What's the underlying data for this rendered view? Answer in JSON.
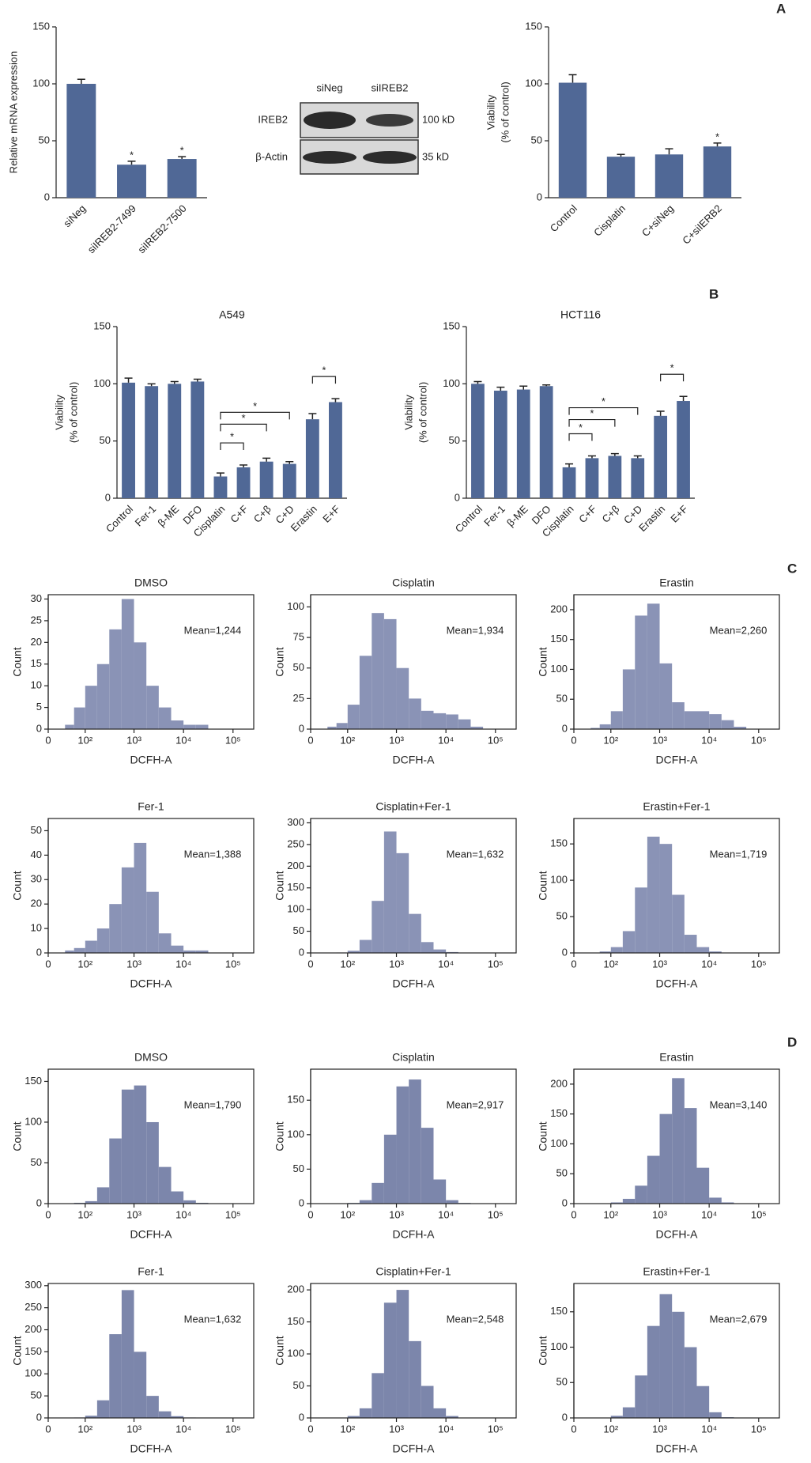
{
  "panels": [
    "A",
    "B",
    "C",
    "D"
  ],
  "blot": {
    "lanes": [
      "siNeg",
      "siIREB2"
    ],
    "rows": [
      "IREB2",
      "β-Actin"
    ],
    "sizes": [
      "100 kD",
      "35 kD"
    ]
  },
  "chart_data": [
    {
      "type": "bar",
      "ylabel": "Relative mRNA expression",
      "categories": [
        "siNeg",
        "siIREB2-7499",
        "siIREB2-7500"
      ],
      "values": [
        100,
        29,
        34
      ],
      "errors": [
        4,
        3,
        2
      ],
      "significance": [
        null,
        "*",
        "*"
      ],
      "color": "#506896",
      "ylim": [
        0,
        150
      ],
      "yticks": [
        0,
        50,
        100,
        150
      ]
    },
    {
      "type": "bar",
      "ylabel": [
        "Viability",
        "(% of control)"
      ],
      "categories": [
        "Control",
        "Cisplatin",
        "C+siNeg",
        "C+siIERB2"
      ],
      "values": [
        101,
        36,
        38,
        45
      ],
      "errors": [
        7,
        2,
        5,
        3
      ],
      "significance": [
        null,
        null,
        null,
        "*"
      ],
      "color": "#506896",
      "ylim": [
        0,
        150
      ],
      "yticks": [
        0,
        50,
        100,
        150
      ]
    },
    {
      "type": "bar",
      "title": "A549",
      "ylabel": [
        "Viability",
        "(% of control)"
      ],
      "categories": [
        "Control",
        "Fer-1",
        "β-ME",
        "DFO",
        "Cisplatin",
        "C+F",
        "C+β",
        "C+D",
        "Erastin",
        "E+F"
      ],
      "values": [
        101,
        98,
        100,
        102,
        19,
        27,
        32,
        30,
        69,
        84
      ],
      "errors": [
        4,
        2,
        2,
        2,
        3,
        2,
        3,
        2,
        5,
        3
      ],
      "brackets": [
        {
          "from": "Cisplatin",
          "to": "C+F",
          "label": "*"
        },
        {
          "from": "Cisplatin",
          "to": "C+β",
          "label": "*"
        },
        {
          "from": "Cisplatin",
          "to": "C+D",
          "label": "*"
        },
        {
          "from": "Erastin",
          "to": "E+F",
          "label": "*"
        }
      ],
      "color": "#506896",
      "ylim": [
        0,
        150
      ],
      "yticks": [
        0,
        50,
        100,
        150
      ]
    },
    {
      "type": "bar",
      "title": "HCT116",
      "ylabel": [
        "Viability",
        "(% of control)"
      ],
      "categories": [
        "Control",
        "Fer-1",
        "β-ME",
        "DFO",
        "Cisplatin",
        "C+F",
        "C+β",
        "C+D",
        "Erastin",
        "E+F"
      ],
      "values": [
        100,
        94,
        95,
        98,
        27,
        35,
        37,
        35,
        72,
        85
      ],
      "errors": [
        2,
        3,
        3,
        1,
        3,
        2,
        2,
        2,
        4,
        4
      ],
      "brackets": [
        {
          "from": "Cisplatin",
          "to": "C+F",
          "label": "*"
        },
        {
          "from": "Cisplatin",
          "to": "C+β",
          "label": "*"
        },
        {
          "from": "Cisplatin",
          "to": "C+D",
          "label": "*"
        },
        {
          "from": "Erastin",
          "to": "E+F",
          "label": "*"
        }
      ],
      "color": "#506896",
      "ylim": [
        0,
        150
      ],
      "yticks": [
        0,
        50,
        100,
        150
      ]
    },
    {
      "type": "histogram",
      "title": "DMSO",
      "annotation": "Mean=1,244",
      "xlabel": "DCFH-A",
      "ylabel": "Count",
      "color": "#8a93b6",
      "xscale": "biexponential",
      "xlim": [
        0,
        262144
      ],
      "xticks": [
        0,
        {
          "value": 100,
          "label": "10²"
        },
        {
          "value": 1000,
          "label": "10³"
        },
        {
          "value": 10000,
          "label": "10⁴"
        },
        {
          "value": 100000,
          "label": "10⁵"
        }
      ],
      "bins": [
        32,
        56,
        100,
        178,
        316,
        562,
        1000,
        1778,
        3162,
        5623,
        10000,
        17783,
        31623,
        56234,
        100000
      ],
      "counts": [
        1,
        5,
        10,
        15,
        23,
        30,
        20,
        10,
        5,
        2,
        1,
        1,
        0,
        0
      ],
      "ylim": [
        0,
        31
      ],
      "yticks": [
        0,
        5,
        10,
        15,
        20,
        25,
        30
      ]
    },
    {
      "type": "histogram",
      "title": "Cisplatin",
      "annotation": "Mean=1,934",
      "xlabel": "DCFH-A",
      "ylabel": "Count",
      "color": "#8a93b6",
      "xscale": "biexponential",
      "xlim": [
        0,
        262144
      ],
      "xticks": [
        0,
        {
          "value": 100,
          "label": "10²"
        },
        {
          "value": 1000,
          "label": "10³"
        },
        {
          "value": 10000,
          "label": "10⁴"
        },
        {
          "value": 100000,
          "label": "10⁵"
        }
      ],
      "bins": [
        32,
        56,
        100,
        178,
        316,
        562,
        1000,
        1778,
        3162,
        5623,
        10000,
        17783,
        31623,
        56234,
        100000
      ],
      "counts": [
        2,
        5,
        20,
        60,
        95,
        90,
        50,
        25,
        15,
        13,
        12,
        8,
        2,
        0
      ],
      "ylim": [
        0,
        110
      ],
      "yticks": [
        0,
        25,
        50,
        75,
        100
      ]
    },
    {
      "type": "histogram",
      "title": "Erastin",
      "annotation": "Mean=2,260",
      "xlabel": "DCFH-A",
      "ylabel": "Count",
      "color": "#8a93b6",
      "xscale": "biexponential",
      "xlim": [
        0,
        262144
      ],
      "xticks": [
        0,
        {
          "value": 100,
          "label": "10²"
        },
        {
          "value": 1000,
          "label": "10³"
        },
        {
          "value": 10000,
          "label": "10⁴"
        },
        {
          "value": 100000,
          "label": "10⁵"
        }
      ],
      "bins": [
        32,
        56,
        100,
        178,
        316,
        562,
        1000,
        1778,
        3162,
        5623,
        10000,
        17783,
        31623,
        56234,
        100000
      ],
      "counts": [
        2,
        8,
        30,
        100,
        190,
        210,
        110,
        45,
        30,
        30,
        25,
        15,
        4,
        0
      ],
      "ylim": [
        0,
        225
      ],
      "yticks": [
        0,
        50,
        100,
        150,
        200
      ]
    },
    {
      "type": "histogram",
      "title": "Fer-1",
      "annotation": "Mean=1,388",
      "xlabel": "DCFH-A",
      "ylabel": "Count",
      "color": "#8a93b6",
      "xscale": "biexponential",
      "xlim": [
        0,
        262144
      ],
      "xticks": [
        0,
        {
          "value": 100,
          "label": "10²"
        },
        {
          "value": 1000,
          "label": "10³"
        },
        {
          "value": 10000,
          "label": "10⁴"
        },
        {
          "value": 100000,
          "label": "10⁵"
        }
      ],
      "bins": [
        32,
        56,
        100,
        178,
        316,
        562,
        1000,
        1778,
        3162,
        5623,
        10000,
        17783,
        31623,
        56234,
        100000
      ],
      "counts": [
        1,
        2,
        5,
        10,
        20,
        35,
        45,
        25,
        8,
        3,
        1,
        1,
        0,
        0
      ],
      "ylim": [
        0,
        55
      ],
      "yticks": [
        0,
        10,
        20,
        30,
        40,
        50
      ]
    },
    {
      "type": "histogram",
      "title": "Cisplatin+Fer-1",
      "annotation": "Mean=1,632",
      "xlabel": "DCFH-A",
      "ylabel": "Count",
      "color": "#8a93b6",
      "xscale": "biexponential",
      "xlim": [
        0,
        262144
      ],
      "xticks": [
        0,
        {
          "value": 100,
          "label": "10²"
        },
        {
          "value": 1000,
          "label": "10³"
        },
        {
          "value": 10000,
          "label": "10⁴"
        },
        {
          "value": 100000,
          "label": "10⁵"
        }
      ],
      "bins": [
        32,
        56,
        100,
        178,
        316,
        562,
        1000,
        1778,
        3162,
        5623,
        10000,
        17783,
        31623,
        56234,
        100000
      ],
      "counts": [
        0,
        1,
        5,
        30,
        120,
        280,
        230,
        90,
        25,
        8,
        2,
        0,
        0,
        0
      ],
      "ylim": [
        0,
        310
      ],
      "yticks": [
        0,
        50,
        100,
        150,
        200,
        250,
        300
      ]
    },
    {
      "type": "histogram",
      "title": "Erastin+Fer-1",
      "annotation": "Mean=1,719",
      "xlabel": "DCFH-A",
      "ylabel": "Count",
      "color": "#8a93b6",
      "xscale": "biexponential",
      "xlim": [
        0,
        262144
      ],
      "xticks": [
        0,
        {
          "value": 100,
          "label": "10²"
        },
        {
          "value": 1000,
          "label": "10³"
        },
        {
          "value": 10000,
          "label": "10⁴"
        },
        {
          "value": 100000,
          "label": "10⁵"
        }
      ],
      "bins": [
        32,
        56,
        100,
        178,
        316,
        562,
        1000,
        1778,
        3162,
        5623,
        10000,
        17783,
        31623,
        56234,
        100000
      ],
      "counts": [
        0,
        2,
        8,
        30,
        90,
        160,
        150,
        80,
        25,
        8,
        2,
        0,
        0,
        0
      ],
      "ylim": [
        0,
        185
      ],
      "yticks": [
        0,
        50,
        100,
        150
      ]
    },
    {
      "type": "histogram",
      "title": "DMSO",
      "annotation": "Mean=1,790",
      "xlabel": "DCFH-A",
      "ylabel": "Count",
      "color": "#7c86ab",
      "xscale": "biexponential",
      "xlim": [
        0,
        262144
      ],
      "xticks": [
        0,
        {
          "value": 100,
          "label": "10²"
        },
        {
          "value": 1000,
          "label": "10³"
        },
        {
          "value": 10000,
          "label": "10⁴"
        },
        {
          "value": 100000,
          "label": "10⁵"
        }
      ],
      "bins": [
        32,
        56,
        100,
        178,
        316,
        562,
        1000,
        1778,
        3162,
        5623,
        10000,
        17783,
        31623,
        56234,
        100000
      ],
      "counts": [
        0,
        1,
        3,
        20,
        80,
        140,
        145,
        100,
        45,
        15,
        4,
        1,
        0,
        0
      ],
      "ylim": [
        0,
        165
      ],
      "yticks": [
        0,
        50,
        100,
        150
      ]
    },
    {
      "type": "histogram",
      "title": "Cisplatin",
      "annotation": "Mean=2,917",
      "xlabel": "DCFH-A",
      "ylabel": "Count",
      "color": "#7c86ab",
      "xscale": "biexponential",
      "xlim": [
        0,
        262144
      ],
      "xticks": [
        0,
        {
          "value": 100,
          "label": "10²"
        },
        {
          "value": 1000,
          "label": "10³"
        },
        {
          "value": 10000,
          "label": "10⁴"
        },
        {
          "value": 100000,
          "label": "10⁵"
        }
      ],
      "bins": [
        32,
        56,
        100,
        178,
        316,
        562,
        1000,
        1778,
        3162,
        5623,
        10000,
        17783,
        31623,
        56234,
        100000
      ],
      "counts": [
        0,
        0,
        1,
        5,
        30,
        100,
        170,
        180,
        110,
        35,
        5,
        1,
        0,
        0
      ],
      "ylim": [
        0,
        195
      ],
      "yticks": [
        0,
        50,
        100,
        150
      ]
    },
    {
      "type": "histogram",
      "title": "Erastin",
      "annotation": "Mean=3,140",
      "xlabel": "DCFH-A",
      "ylabel": "Count",
      "color": "#7c86ab",
      "xscale": "biexponential",
      "xlim": [
        0,
        262144
      ],
      "xticks": [
        0,
        {
          "value": 100,
          "label": "10²"
        },
        {
          "value": 1000,
          "label": "10³"
        },
        {
          "value": 10000,
          "label": "10⁴"
        },
        {
          "value": 100000,
          "label": "10⁵"
        }
      ],
      "bins": [
        32,
        56,
        100,
        178,
        316,
        562,
        1000,
        1778,
        3162,
        5623,
        10000,
        17783,
        31623,
        56234,
        100000
      ],
      "counts": [
        0,
        0,
        2,
        8,
        30,
        80,
        150,
        210,
        160,
        60,
        10,
        2,
        0,
        0
      ],
      "ylim": [
        0,
        225
      ],
      "yticks": [
        0,
        50,
        100,
        150,
        200
      ]
    },
    {
      "type": "histogram",
      "title": "Fer-1",
      "annotation": "Mean=1,632",
      "xlabel": "DCFH-A",
      "ylabel": "Count",
      "color": "#7c86ab",
      "xscale": "biexponential",
      "xlim": [
        0,
        262144
      ],
      "xticks": [
        0,
        {
          "value": 100,
          "label": "10²"
        },
        {
          "value": 1000,
          "label": "10³"
        },
        {
          "value": 10000,
          "label": "10⁴"
        },
        {
          "value": 100000,
          "label": "10⁵"
        }
      ],
      "bins": [
        32,
        56,
        100,
        178,
        316,
        562,
        1000,
        1778,
        3162,
        5623,
        10000,
        17783,
        31623,
        56234,
        100000
      ],
      "counts": [
        0,
        1,
        5,
        40,
        190,
        290,
        150,
        50,
        15,
        4,
        1,
        0,
        0,
        0
      ],
      "ylim": [
        0,
        305
      ],
      "yticks": [
        0,
        50,
        100,
        150,
        200,
        250,
        300
      ]
    },
    {
      "type": "histogram",
      "title": "Cisplatin+Fer-1",
      "annotation": "Mean=2,548",
      "xlabel": "DCFH-A",
      "ylabel": "Count",
      "color": "#7c86ab",
      "xscale": "biexponential",
      "xlim": [
        0,
        262144
      ],
      "xticks": [
        0,
        {
          "value": 100,
          "label": "10²"
        },
        {
          "value": 1000,
          "label": "10³"
        },
        {
          "value": 10000,
          "label": "10⁴"
        },
        {
          "value": 100000,
          "label": "10⁵"
        }
      ],
      "bins": [
        32,
        56,
        100,
        178,
        316,
        562,
        1000,
        1778,
        3162,
        5623,
        10000,
        17783,
        31623,
        56234,
        100000
      ],
      "counts": [
        0,
        0,
        3,
        15,
        70,
        180,
        200,
        120,
        50,
        15,
        3,
        0,
        0,
        0
      ],
      "ylim": [
        0,
        210
      ],
      "yticks": [
        0,
        50,
        100,
        150,
        200
      ]
    },
    {
      "type": "histogram",
      "title": "Erastin+Fer-1",
      "annotation": "Mean=2,679",
      "xlabel": "DCFH-A",
      "ylabel": "Count",
      "color": "#7c86ab",
      "xscale": "biexponential",
      "xlim": [
        0,
        262144
      ],
      "xticks": [
        0,
        {
          "value": 100,
          "label": "10²"
        },
        {
          "value": 1000,
          "label": "10³"
        },
        {
          "value": 10000,
          "label": "10⁴"
        },
        {
          "value": 100000,
          "label": "10⁵"
        }
      ],
      "bins": [
        32,
        56,
        100,
        178,
        316,
        562,
        1000,
        1778,
        3162,
        5623,
        10000,
        17783,
        31623,
        56234,
        100000
      ],
      "counts": [
        0,
        0,
        3,
        15,
        60,
        130,
        175,
        150,
        100,
        45,
        8,
        1,
        0,
        0
      ],
      "ylim": [
        0,
        190
      ],
      "yticks": [
        0,
        50,
        100,
        150
      ]
    }
  ]
}
